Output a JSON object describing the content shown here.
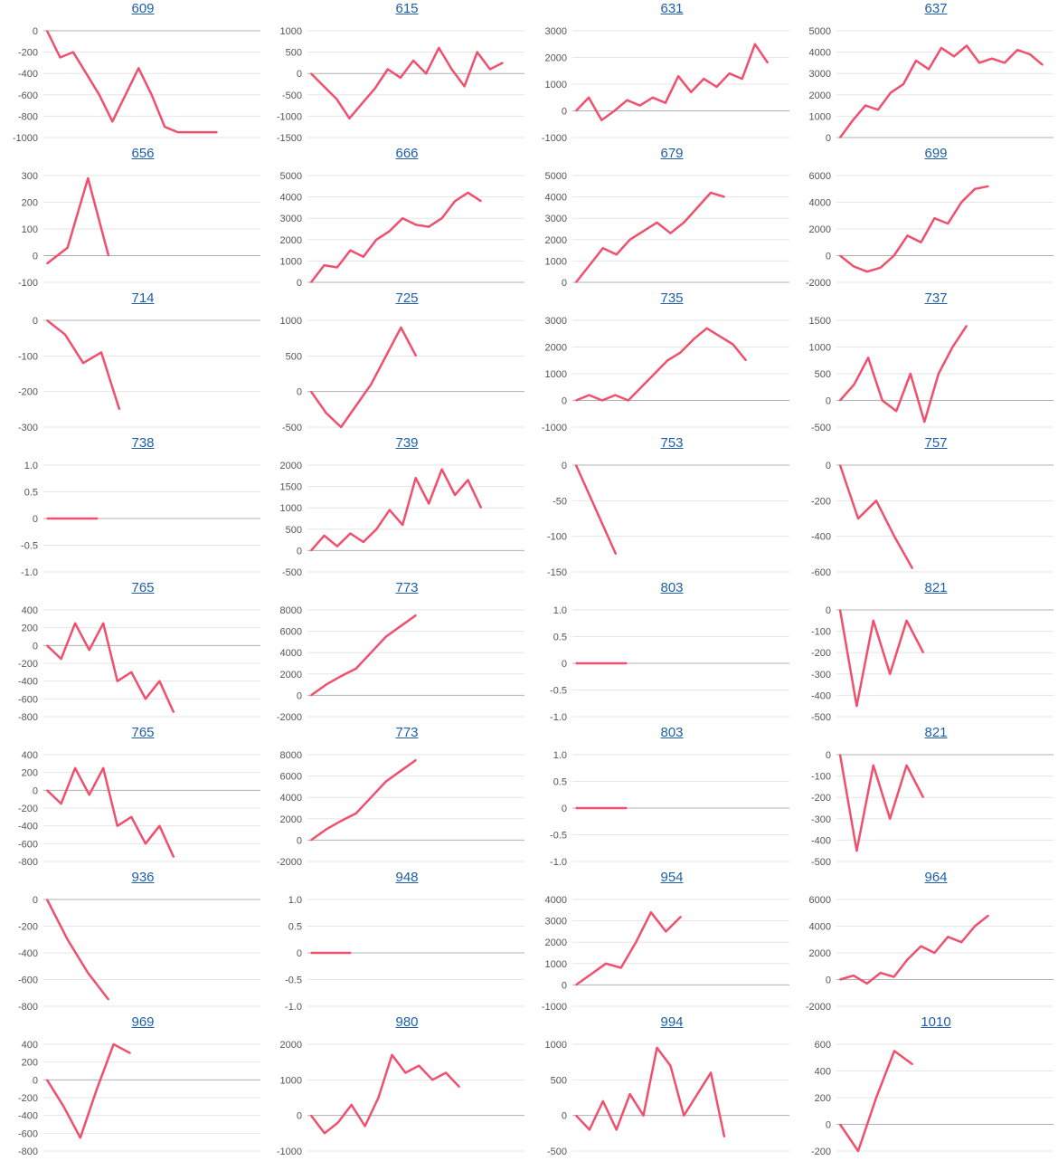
{
  "line_color": "#f0506e",
  "link_color": "#1f5fa6",
  "chart_data": [
    {
      "type": "line",
      "title": "609",
      "ylim": [
        -1000,
        0
      ],
      "yticks": [
        0,
        -200,
        -400,
        -600,
        -800,
        -1000
      ],
      "x": [
        0,
        1,
        2,
        3,
        4,
        5,
        6,
        7,
        8,
        9,
        10,
        11,
        12,
        13
      ],
      "values": [
        0,
        -250,
        -200,
        -400,
        -600,
        -850,
        -600,
        -350,
        -600,
        -900,
        -950,
        -950,
        -950,
        -950
      ],
      "n": 14
    },
    {
      "type": "line",
      "title": "615",
      "ylim": [
        -1500,
        1000
      ],
      "yticks": [
        1000,
        500,
        0,
        -500,
        -1000,
        -1500
      ],
      "values": [
        0,
        -300,
        -600,
        -1050,
        -700,
        -350,
        100,
        -100,
        300,
        0,
        600,
        100,
        -300,
        500,
        100,
        250
      ],
      "n": 16
    },
    {
      "type": "line",
      "title": "631",
      "ylim": [
        -1000,
        3000
      ],
      "yticks": [
        3000,
        2000,
        1000,
        0,
        -1000
      ],
      "values": [
        0,
        500,
        -350,
        0,
        400,
        200,
        500,
        300,
        1300,
        700,
        1200,
        900,
        1400,
        1200,
        2500,
        1800
      ],
      "n": 16
    },
    {
      "type": "line",
      "title": "637",
      "ylim": [
        0,
        5000
      ],
      "yticks": [
        5000,
        4000,
        3000,
        2000,
        1000,
        0
      ],
      "values": [
        0,
        800,
        1500,
        1300,
        2100,
        2500,
        3600,
        3200,
        4200,
        3800,
        4300,
        3500,
        3700,
        3500,
        4100,
        3900,
        3400
      ],
      "n": 17
    },
    {
      "type": "line",
      "title": "656",
      "ylim": [
        -100,
        300
      ],
      "yticks": [
        300,
        200,
        100,
        0,
        -100
      ],
      "values": [
        -30,
        30,
        290,
        0
      ],
      "n": 4
    },
    {
      "type": "line",
      "title": "666",
      "ylim": [
        0,
        5000
      ],
      "yticks": [
        5000,
        4000,
        3000,
        2000,
        1000,
        0
      ],
      "values": [
        0,
        800,
        700,
        1500,
        1200,
        2000,
        2400,
        3000,
        2700,
        2600,
        3000,
        3800,
        4200,
        3800
      ],
      "n": 14
    },
    {
      "type": "line",
      "title": "679",
      "ylim": [
        0,
        5000
      ],
      "yticks": [
        5000,
        4000,
        3000,
        2000,
        1000,
        0
      ],
      "values": [
        0,
        800,
        1600,
        1300,
        2000,
        2400,
        2800,
        2300,
        2800,
        3500,
        4200,
        4000
      ],
      "n": 12
    },
    {
      "type": "line",
      "title": "699",
      "ylim": [
        -2000,
        6000
      ],
      "yticks": [
        6000,
        4000,
        2000,
        0,
        -2000
      ],
      "values": [
        0,
        -800,
        -1200,
        -900,
        0,
        1500,
        1000,
        2800,
        2400,
        4000,
        5000,
        5200
      ],
      "n": 12
    },
    {
      "type": "line",
      "title": "714",
      "ylim": [
        -300,
        0
      ],
      "yticks": [
        0,
        -100,
        -200,
        -300
      ],
      "values": [
        0,
        -40,
        -120,
        -90,
        -250
      ],
      "n": 5
    },
    {
      "type": "line",
      "title": "725",
      "ylim": [
        -500,
        1000
      ],
      "yticks": [
        1000,
        500,
        0,
        -500
      ],
      "values": [
        0,
        -300,
        -500,
        -200,
        100,
        500,
        900,
        500
      ],
      "n": 8
    },
    {
      "type": "line",
      "title": "735",
      "ylim": [
        -1000,
        3000
      ],
      "yticks": [
        3000,
        2000,
        1000,
        0,
        -1000
      ],
      "values": [
        0,
        200,
        0,
        200,
        0,
        500,
        1000,
        1500,
        1800,
        2300,
        2700,
        2400,
        2100,
        1500
      ],
      "n": 14
    },
    {
      "type": "line",
      "title": "737",
      "ylim": [
        -500,
        1500
      ],
      "yticks": [
        1500,
        1000,
        500,
        0,
        -500
      ],
      "values": [
        0,
        300,
        800,
        0,
        -200,
        500,
        -400,
        500,
        1000,
        1400
      ],
      "n": 10
    },
    {
      "type": "line",
      "title": "738",
      "ylim": [
        -1,
        1
      ],
      "yticks": [
        "1.0",
        "0.5",
        "0",
        "-0.5",
        "-1.0"
      ],
      "values": [
        0,
        0,
        0
      ],
      "n": 3
    },
    {
      "type": "line",
      "title": "739",
      "ylim": [
        -500,
        2000
      ],
      "yticks": [
        2000,
        1500,
        1000,
        500,
        0,
        -500
      ],
      "values": [
        0,
        350,
        100,
        400,
        200,
        500,
        950,
        600,
        1700,
        1100,
        1900,
        1300,
        1650,
        1000
      ],
      "n": 14
    },
    {
      "type": "line",
      "title": "753",
      "ylim": [
        -150,
        0
      ],
      "yticks": [
        0,
        -50,
        -100,
        -150
      ],
      "values": [
        0,
        -125
      ],
      "n": 2
    },
    {
      "type": "line",
      "title": "757",
      "ylim": [
        -600,
        0
      ],
      "yticks": [
        0,
        -200,
        -400,
        -600
      ],
      "values": [
        0,
        -300,
        -200,
        -400,
        -580
      ],
      "n": 5
    },
    {
      "type": "line",
      "title": "765",
      "ylim": [
        -800,
        400
      ],
      "yticks": [
        400,
        200,
        0,
        -200,
        -400,
        -600,
        -800
      ],
      "values": [
        0,
        -150,
        250,
        -50,
        250,
        -400,
        -300,
        -600,
        -400,
        -750
      ],
      "n": 10
    },
    {
      "type": "line",
      "title": "773",
      "ylim": [
        -2000,
        8000
      ],
      "yticks": [
        8000,
        6000,
        4000,
        2000,
        0,
        -2000
      ],
      "values": [
        0,
        1000,
        1800,
        2500,
        4000,
        5500,
        6500,
        7500
      ],
      "n": 8
    },
    {
      "type": "line",
      "title": "803",
      "ylim": [
        -1,
        1
      ],
      "yticks": [
        "1.0",
        "0.5",
        "0",
        "-0.5",
        "-1.0"
      ],
      "values": [
        0,
        0,
        0
      ],
      "n": 3
    },
    {
      "type": "line",
      "title": "821",
      "ylim": [
        -500,
        0
      ],
      "yticks": [
        0,
        -100,
        -200,
        -300,
        -400,
        -500
      ],
      "values": [
        0,
        -450,
        -50,
        -300,
        -50,
        -200
      ],
      "n": 6
    },
    {
      "type": "line",
      "title": "765",
      "ylim": [
        -800,
        400
      ],
      "yticks": [
        400,
        200,
        0,
        -200,
        -400,
        -600,
        -800
      ],
      "values": [
        0,
        -150,
        250,
        -50,
        250,
        -400,
        -300,
        -600,
        -400,
        -750
      ],
      "n": 10
    },
    {
      "type": "line",
      "title": "773",
      "ylim": [
        -2000,
        8000
      ],
      "yticks": [
        8000,
        6000,
        4000,
        2000,
        0,
        -2000
      ],
      "values": [
        0,
        1000,
        1800,
        2500,
        4000,
        5500,
        6500,
        7500
      ],
      "n": 8
    },
    {
      "type": "line",
      "title": "803",
      "ylim": [
        -1,
        1
      ],
      "yticks": [
        "1.0",
        "0.5",
        "0",
        "-0.5",
        "-1.0"
      ],
      "values": [
        0,
        0,
        0
      ],
      "n": 3
    },
    {
      "type": "line",
      "title": "821",
      "ylim": [
        -500,
        0
      ],
      "yticks": [
        0,
        -100,
        -200,
        -300,
        -400,
        -500
      ],
      "values": [
        0,
        -450,
        -50,
        -300,
        -50,
        -200
      ],
      "n": 6
    },
    {
      "type": "line",
      "title": "936",
      "ylim": [
        -800,
        0
      ],
      "yticks": [
        0,
        -200,
        -400,
        -600,
        -800
      ],
      "values": [
        0,
        -300,
        -550,
        -750
      ],
      "n": 4
    },
    {
      "type": "line",
      "title": "948",
      "ylim": [
        -1,
        1
      ],
      "yticks": [
        "1.0",
        "0.5",
        "0",
        "-0.5",
        "-1.0"
      ],
      "values": [
        0,
        0
      ],
      "n": 2
    },
    {
      "type": "line",
      "title": "954",
      "ylim": [
        -1000,
        4000
      ],
      "yticks": [
        4000,
        3000,
        2000,
        1000,
        0,
        -1000
      ],
      "values": [
        0,
        500,
        1000,
        800,
        2000,
        3400,
        2500,
        3200
      ],
      "n": 8
    },
    {
      "type": "line",
      "title": "964",
      "ylim": [
        -2000,
        6000
      ],
      "yticks": [
        6000,
        4000,
        2000,
        0,
        -2000
      ],
      "values": [
        0,
        300,
        -300,
        500,
        200,
        1500,
        2500,
        2000,
        3200,
        2800,
        4000,
        4800
      ],
      "n": 12
    },
    {
      "type": "line",
      "title": "969",
      "ylim": [
        -800,
        400
      ],
      "yticks": [
        400,
        200,
        0,
        -200,
        -400,
        -600,
        -800
      ],
      "values": [
        0,
        -300,
        -650,
        -100,
        400,
        300
      ],
      "n": 6
    },
    {
      "type": "line",
      "title": "980",
      "ylim": [
        -1000,
        2000
      ],
      "yticks": [
        2000,
        1000,
        0,
        -1000
      ],
      "values": [
        0,
        -500,
        -200,
        300,
        -300,
        500,
        1700,
        1200,
        1400,
        1000,
        1200,
        800
      ],
      "n": 12
    },
    {
      "type": "line",
      "title": "994",
      "ylim": [
        -500,
        1000
      ],
      "yticks": [
        1000,
        500,
        0,
        -500
      ],
      "values": [
        0,
        -200,
        200,
        -200,
        300,
        0,
        950,
        700,
        0,
        300,
        600,
        -300
      ],
      "n": 12
    },
    {
      "type": "line",
      "title": "1010",
      "ylim": [
        -200,
        600
      ],
      "yticks": [
        600,
        400,
        200,
        0,
        -200
      ],
      "values": [
        0,
        -200,
        200,
        550,
        450
      ],
      "n": 5
    }
  ]
}
